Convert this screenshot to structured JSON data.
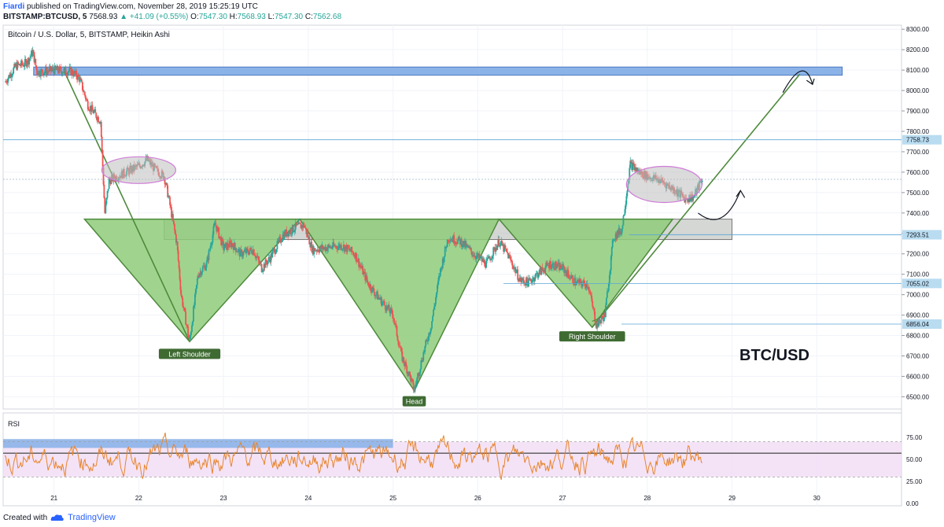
{
  "header": {
    "author": "Fiardi",
    "published": "published on TradingView.com, November 28, 2019 15:25:19 UTC",
    "symbol": "BITSTAMP:BTCUSD, 5",
    "last": "7568.93",
    "change": "+41.09 (+0.55%)",
    "o_label": "O:",
    "o_val": "7547.30",
    "h_label": "H:",
    "h_val": "7568.93",
    "l_label": "L:",
    "l_val": "7547.30",
    "c_label": "C:",
    "c_val": "7562.68"
  },
  "footer": {
    "created": "Created with",
    "brand": "TradingView"
  },
  "colors": {
    "up": "#26a69a",
    "down": "#ef5350",
    "green_fill": "#8fcc7a",
    "box_blue": "#8cb3e8",
    "rsi": "#e8852c",
    "rsi_band": "#f1dcf5"
  },
  "chart_data": {
    "type": "candlestick",
    "title": "Bitcoin / U.S. Dollar, 5, BITSTAMP, Heikin Ashi",
    "watermark": "BTC/USD",
    "x_ticks": [
      "21",
      "22",
      "23",
      "24",
      "25",
      "26",
      "27",
      "28",
      "29",
      "30"
    ],
    "y_ticks": [
      "8300.00",
      "8200.00",
      "8100.00",
      "8000.00",
      "7900.00",
      "7800.00",
      "7700.00",
      "7600.00",
      "7500.00",
      "7400.00",
      "7300.00",
      "7200.00",
      "7100.00",
      "7000.00",
      "6900.00",
      "6800.00",
      "6700.00",
      "6600.00",
      "6500.00"
    ],
    "ylim": [
      6440,
      8320
    ],
    "xlim": [
      20.4,
      31.0
    ],
    "price_path": [
      [
        20.42,
        8040
      ],
      [
        20.55,
        8120
      ],
      [
        20.65,
        8130
      ],
      [
        20.7,
        8150
      ],
      [
        20.75,
        8190
      ],
      [
        20.8,
        8090
      ],
      [
        21.0,
        8100
      ],
      [
        21.2,
        8095
      ],
      [
        21.3,
        8060
      ],
      [
        21.4,
        7930
      ],
      [
        21.55,
        7850
      ],
      [
        21.6,
        7400
      ],
      [
        21.65,
        7560
      ],
      [
        21.8,
        7590
      ],
      [
        22.0,
        7630
      ],
      [
        22.1,
        7660
      ],
      [
        22.2,
        7610
      ],
      [
        22.3,
        7580
      ],
      [
        22.35,
        7480
      ],
      [
        22.45,
        7250
      ],
      [
        22.5,
        7000
      ],
      [
        22.6,
        6770
      ],
      [
        22.7,
        7100
      ],
      [
        22.8,
        7150
      ],
      [
        22.9,
        7350
      ],
      [
        23.0,
        7230
      ],
      [
        23.1,
        7250
      ],
      [
        23.2,
        7200
      ],
      [
        23.35,
        7220
      ],
      [
        23.45,
        7130
      ],
      [
        23.55,
        7180
      ],
      [
        23.7,
        7290
      ],
      [
        23.85,
        7330
      ],
      [
        23.95,
        7340
      ],
      [
        24.05,
        7220
      ],
      [
        24.2,
        7230
      ],
      [
        24.4,
        7240
      ],
      [
        24.55,
        7200
      ],
      [
        24.7,
        7060
      ],
      [
        24.8,
        7000
      ],
      [
        24.9,
        6950
      ],
      [
        25.0,
        6900
      ],
      [
        25.1,
        6700
      ],
      [
        25.2,
        6600
      ],
      [
        25.25,
        6530
      ],
      [
        25.35,
        6700
      ],
      [
        25.45,
        6850
      ],
      [
        25.55,
        7100
      ],
      [
        25.65,
        7280
      ],
      [
        25.8,
        7260
      ],
      [
        25.95,
        7200
      ],
      [
        26.1,
        7150
      ],
      [
        26.25,
        7260
      ],
      [
        26.35,
        7200
      ],
      [
        26.5,
        7070
      ],
      [
        26.6,
        7060
      ],
      [
        26.7,
        7100
      ],
      [
        26.85,
        7150
      ],
      [
        27.0,
        7130
      ],
      [
        27.15,
        7060
      ],
      [
        27.3,
        7050
      ],
      [
        27.4,
        6850
      ],
      [
        27.5,
        6900
      ],
      [
        27.6,
        7280
      ],
      [
        27.7,
        7320
      ],
      [
        27.8,
        7640
      ],
      [
        27.9,
        7600
      ],
      [
        28.0,
        7580
      ],
      [
        28.15,
        7560
      ],
      [
        28.3,
        7520
      ],
      [
        28.45,
        7470
      ],
      [
        28.55,
        7480
      ],
      [
        28.65,
        7570
      ]
    ],
    "price_labels": [
      {
        "value": 7758.73,
        "text": "7758.73"
      },
      {
        "value": 7293.51,
        "text": "7293.51"
      },
      {
        "value": 7055.02,
        "text": "7055.02"
      },
      {
        "value": 6856.04,
        "text": "6856.04"
      }
    ],
    "annotations": {
      "left_shoulder": {
        "text": "Left Shoulder",
        "x": 22.6,
        "y": 6770
      },
      "head": {
        "text": "Head",
        "x": 25.25,
        "y": 6530
      },
      "right_shoulder": {
        "text": "Right Shoulder",
        "x": 27.35,
        "y": 6840
      },
      "neckline": [
        7370,
        7270
      ],
      "resistance_zone": [
        8075,
        8115
      ],
      "projection_target": 8100
    },
    "rsi": {
      "label": "RSI",
      "ticks": [
        "75.00",
        "50.00",
        "25.00",
        "0.00"
      ],
      "ylim": [
        0,
        100
      ],
      "upper": 70,
      "lower": 30,
      "mid": 50
    }
  }
}
